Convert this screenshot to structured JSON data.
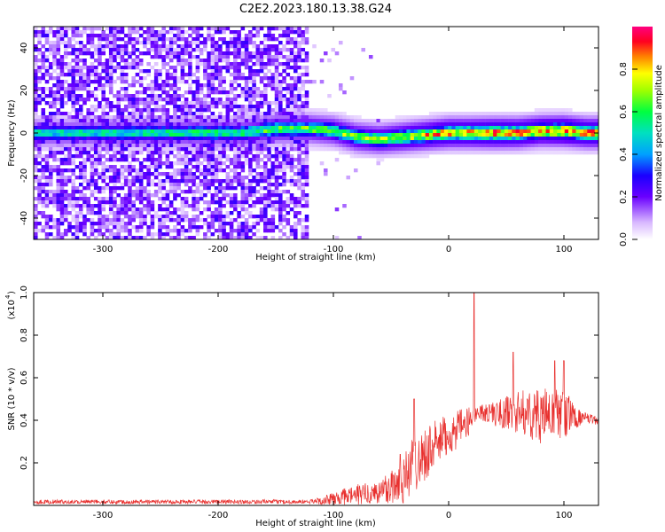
{
  "chart_data": [
    {
      "type": "heatmap",
      "title": "C2E2.2023.180.13.38.G24",
      "xlabel": "Height of straight line (km)",
      "ylabel": "Frequency (Hz)",
      "xlim": [
        -360,
        130
      ],
      "ylim": [
        -50,
        50
      ],
      "xticks": [
        -300,
        -200,
        -100,
        0,
        100
      ],
      "yticks": [
        -40,
        -20,
        0,
        20,
        40
      ],
      "grid": false,
      "colorbar": {
        "label": "Normalized spectral amplitude",
        "range": [
          0,
          1
        ],
        "ticks": [
          "0.0",
          "0.2",
          "0.4",
          "0.6",
          "0.8"
        ]
      },
      "noise_region_x": [
        -360,
        -120
      ],
      "sparse_region_x": [
        -120,
        -60
      ],
      "signal_ridge": [
        {
          "x": -300,
          "freq": 0,
          "amp": 0.55
        },
        {
          "x": -220,
          "freq": 0,
          "amp": 0.6
        },
        {
          "x": -180,
          "freq": 0,
          "amp": 0.6
        },
        {
          "x": -150,
          "freq": 2,
          "amp": 0.7
        },
        {
          "x": -120,
          "freq": 2,
          "amp": 0.7
        },
        {
          "x": -100,
          "freq": 1,
          "amp": 0.72
        },
        {
          "x": -80,
          "freq": -2,
          "amp": 0.75
        },
        {
          "x": -60,
          "freq": -3,
          "amp": 0.75
        },
        {
          "x": -40,
          "freq": -2,
          "amp": 0.8
        },
        {
          "x": -20,
          "freq": -1,
          "amp": 0.85
        },
        {
          "x": 0,
          "freq": 0,
          "amp": 0.9
        },
        {
          "x": 20,
          "freq": 0,
          "amp": 0.9
        },
        {
          "x": 40,
          "freq": 0,
          "amp": 0.95
        },
        {
          "x": 60,
          "freq": 0,
          "amp": 0.92
        },
        {
          "x": 80,
          "freq": 1,
          "amp": 0.9
        },
        {
          "x": 100,
          "freq": 1,
          "amp": 0.95
        },
        {
          "x": 120,
          "freq": 0,
          "amp": 0.92
        }
      ]
    },
    {
      "type": "line",
      "xlabel": "Height of straight line (km)",
      "ylabel": "SNR (10 * v/v)",
      "y_multiplier_label": "(x10",
      "y_multiplier_exp": "4",
      "xlim": [
        -360,
        130
      ],
      "ylim": [
        0,
        1.0
      ],
      "xticks": [
        -300,
        -200,
        -100,
        0,
        100
      ],
      "yticks": [
        "0.2",
        "0.4",
        "0.6",
        "0.8",
        "1.0"
      ],
      "grid": false,
      "color": "#e8302e",
      "series_envelope": [
        {
          "x": -360,
          "mean": 0.017,
          "spread": 0.01
        },
        {
          "x": -120,
          "mean": 0.017,
          "spread": 0.01
        },
        {
          "x": -100,
          "mean": 0.03,
          "spread": 0.03
        },
        {
          "x": -80,
          "mean": 0.05,
          "spread": 0.05
        },
        {
          "x": -60,
          "mean": 0.06,
          "spread": 0.06
        },
        {
          "x": -40,
          "mean": 0.12,
          "spread": 0.12
        },
        {
          "x": -30,
          "mean": 0.2,
          "spread": 0.14
        },
        {
          "x": -15,
          "mean": 0.27,
          "spread": 0.12
        },
        {
          "x": 0,
          "mean": 0.33,
          "spread": 0.1
        },
        {
          "x": 15,
          "mean": 0.38,
          "spread": 0.08
        },
        {
          "x": 25,
          "mean": 0.44,
          "spread": 0.03
        },
        {
          "x": 40,
          "mean": 0.43,
          "spread": 0.06
        },
        {
          "x": 60,
          "mean": 0.44,
          "spread": 0.1
        },
        {
          "x": 80,
          "mean": 0.42,
          "spread": 0.13
        },
        {
          "x": 100,
          "mean": 0.43,
          "spread": 0.12
        },
        {
          "x": 115,
          "mean": 0.41,
          "spread": 0.03
        },
        {
          "x": 130,
          "mean": 0.4,
          "spread": 0.02
        }
      ],
      "peaks": [
        {
          "x": 22,
          "y": 1.0
        },
        {
          "x": 56,
          "y": 0.72
        },
        {
          "x": 92,
          "y": 0.68
        },
        {
          "x": 100,
          "y": 0.68
        },
        {
          "x": -42,
          "y": 0.24
        },
        {
          "x": -30,
          "y": 0.5
        }
      ]
    }
  ]
}
